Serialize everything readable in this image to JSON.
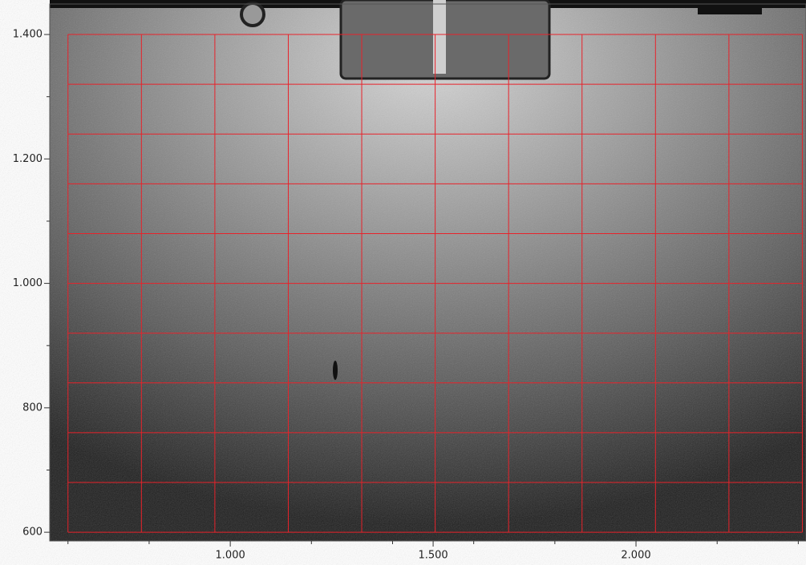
{
  "chart_data": {
    "type": "image",
    "xlim": [
      555,
      2419
    ],
    "ylim": [
      586,
      1449
    ],
    "xticks": [
      {
        "value": 1000,
        "label": "1.000"
      },
      {
        "value": 1500,
        "label": "1.500"
      },
      {
        "value": 2000,
        "label": "2.000"
      }
    ],
    "yticks": [
      600,
      800,
      {
        "value": 1000,
        "label": "1.000"
      },
      {
        "value": 1200,
        "label": "1.200"
      },
      {
        "value": 1400,
        "label": "1.400"
      }
    ],
    "xminorticks": [
      600,
      800,
      1200,
      1400,
      1600,
      1800,
      2200,
      2400
    ],
    "yminorticks": [
      700,
      900,
      1100,
      1300
    ],
    "overlay_color": "#e8222a",
    "overlay_x": [
      600,
      781,
      962,
      1143,
      1324,
      1505,
      1686,
      1867,
      2048,
      2229,
      2410
    ],
    "overlay_y": [
      600,
      680,
      760,
      840,
      920,
      1000,
      1080,
      1160,
      1240,
      1320,
      1400
    ]
  }
}
